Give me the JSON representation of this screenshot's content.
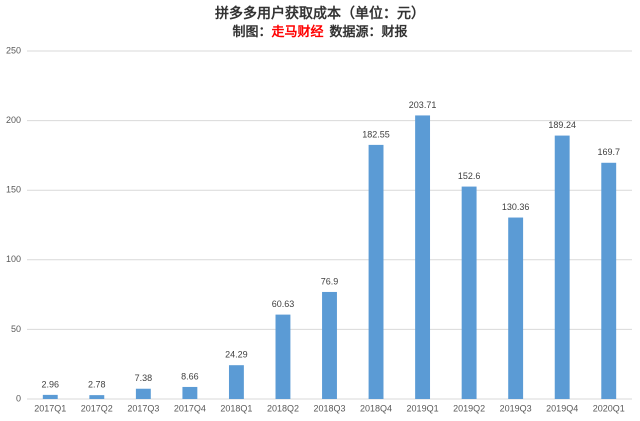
{
  "chart_data": {
    "type": "bar",
    "title": "拼多多用户获取成本（单位：元）",
    "subtitle": {
      "prefix": "制图：",
      "source": "走马财经",
      "suffix": "数据源：财报"
    },
    "subtitle_highlight_color": "#ff0000",
    "categories": [
      "2017Q1",
      "2017Q2",
      "2017Q3",
      "2017Q4",
      "2018Q1",
      "2018Q2",
      "2018Q3",
      "2018Q4",
      "2019Q1",
      "2019Q2",
      "2019Q3",
      "2019Q4",
      "2020Q1"
    ],
    "values": [
      2.96,
      2.78,
      7.38,
      8.66,
      24.29,
      60.63,
      76.9,
      182.55,
      203.71,
      152.6,
      130.36,
      189.24,
      169.7
    ],
    "color": "#5b9bd5",
    "ylim": [
      0,
      250
    ],
    "yticks": [
      0,
      50,
      100,
      150,
      200,
      250
    ],
    "grid": true
  }
}
